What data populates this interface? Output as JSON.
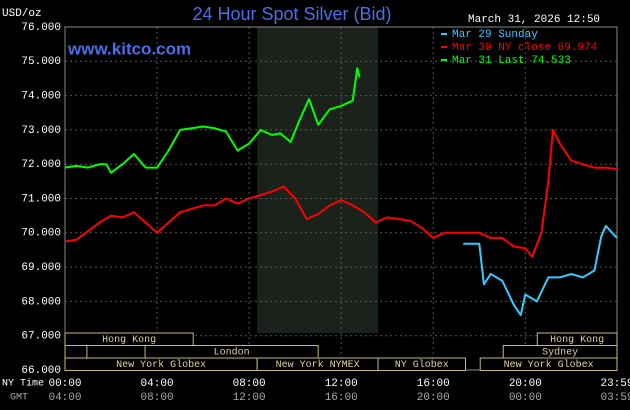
{
  "chart_data": {
    "type": "line",
    "title": "24 Hour Spot Silver (Bid)",
    "watermark": "www.kitco.com",
    "timestamp": "March 31, 2026 12:50",
    "y_label": "USD/oz",
    "x_label": "NY Time",
    "x2_label": "GMT",
    "xlim": [
      0,
      23.983
    ],
    "ylim": [
      66,
      76
    ],
    "xticks": [
      {
        "value": 0,
        "label": "00:00"
      },
      {
        "value": 4,
        "label": "04:00"
      },
      {
        "value": 8,
        "label": "08:00"
      },
      {
        "value": 12,
        "label": "12:00"
      },
      {
        "value": 16,
        "label": "16:00"
      },
      {
        "value": 20,
        "label": "20:00"
      },
      {
        "value": 23.983,
        "label": "23:59"
      }
    ],
    "x2_ticklabels": [
      "04:00",
      "08:00",
      "12:00",
      "16:00",
      "20:00",
      "00:00",
      "03:59"
    ],
    "yticks": [
      {
        "value": 66,
        "label": "66.000"
      },
      {
        "value": 67,
        "label": "67.000"
      },
      {
        "value": 68,
        "label": "68.000"
      },
      {
        "value": 69,
        "label": "69.000"
      },
      {
        "value": 70,
        "label": "70.000"
      },
      {
        "value": 71,
        "label": "71.000"
      },
      {
        "value": 72,
        "label": "72.000"
      },
      {
        "value": 73,
        "label": "73.000"
      },
      {
        "value": 74,
        "label": "74.000"
      },
      {
        "value": 75,
        "label": "75.000"
      },
      {
        "value": 76,
        "label": "76.000"
      }
    ],
    "grid": true,
    "legend": "top-right",
    "sessions": [
      "Hong Kong",
      "London",
      "New York Globex",
      "New York NYMEX",
      "NY Globex",
      "Hong Kong",
      "Sydney",
      "New York Globex"
    ],
    "series": [
      {
        "name": "Mar 29 Sunday",
        "color": "#33ccff",
        "x": [
          17.3,
          18,
          18.2,
          18.5,
          19,
          19.5,
          19.8,
          20,
          20.5,
          21,
          21.5,
          22,
          22.5,
          23,
          23.3,
          23.5,
          23.983
        ],
        "values": [
          69.68,
          69.68,
          68.5,
          68.8,
          68.6,
          67.9,
          67.6,
          68.2,
          68.0,
          68.7,
          68.7,
          68.8,
          68.7,
          68.9,
          69.9,
          70.2,
          69.85
        ]
      },
      {
        "name": "Mar 30 NY close 69.974",
        "color": "#ff0000",
        "x": [
          0,
          0.5,
          1,
          1.5,
          2,
          2.5,
          3,
          3.5,
          4,
          4.5,
          5,
          5.5,
          6,
          6.5,
          7,
          7.5,
          8,
          8.5,
          9,
          9.5,
          10,
          10.5,
          11,
          11.5,
          12,
          12.5,
          13,
          13.5,
          14,
          15,
          15.5,
          16,
          16.5,
          17,
          17.5,
          18,
          18.5,
          19,
          19.5,
          20,
          20.3,
          20.7,
          21,
          21.2,
          21.5,
          22,
          22.5,
          23,
          23.5,
          23.983
        ],
        "values": [
          69.75,
          69.8,
          70.05,
          70.3,
          70.5,
          70.45,
          70.6,
          70.3,
          70.0,
          70.3,
          70.6,
          70.7,
          70.8,
          70.8,
          71.0,
          70.85,
          71.0,
          71.1,
          71.2,
          71.35,
          71.0,
          70.4,
          70.55,
          70.8,
          70.95,
          70.8,
          70.6,
          70.3,
          70.45,
          70.35,
          70.15,
          69.85,
          70.0,
          70.0,
          70.0,
          70.0,
          69.85,
          69.85,
          69.6,
          69.55,
          69.3,
          70.0,
          71.5,
          73.0,
          72.6,
          72.1,
          72.0,
          71.9,
          71.9,
          71.85
        ]
      },
      {
        "name": "Mar 31 Last 74.533",
        "color": "#00ff00",
        "x": [
          0,
          0.5,
          1,
          1.5,
          1.8,
          2,
          2.5,
          3,
          3.5,
          4,
          4.5,
          5,
          5.5,
          6,
          6.5,
          7,
          7.5,
          8,
          8.5,
          9,
          9.35,
          9.8,
          10.2,
          10.6,
          11,
          11.5,
          12,
          12.5,
          12.7,
          12.8
        ],
        "values": [
          71.9,
          71.95,
          71.9,
          72.0,
          72.0,
          71.75,
          72.0,
          72.3,
          71.9,
          71.9,
          72.4,
          73.0,
          73.05,
          73.1,
          73.05,
          72.95,
          72.4,
          72.6,
          73.0,
          72.85,
          72.9,
          72.65,
          73.3,
          73.9,
          73.15,
          73.6,
          73.7,
          73.85,
          74.8,
          74.533
        ]
      }
    ]
  }
}
